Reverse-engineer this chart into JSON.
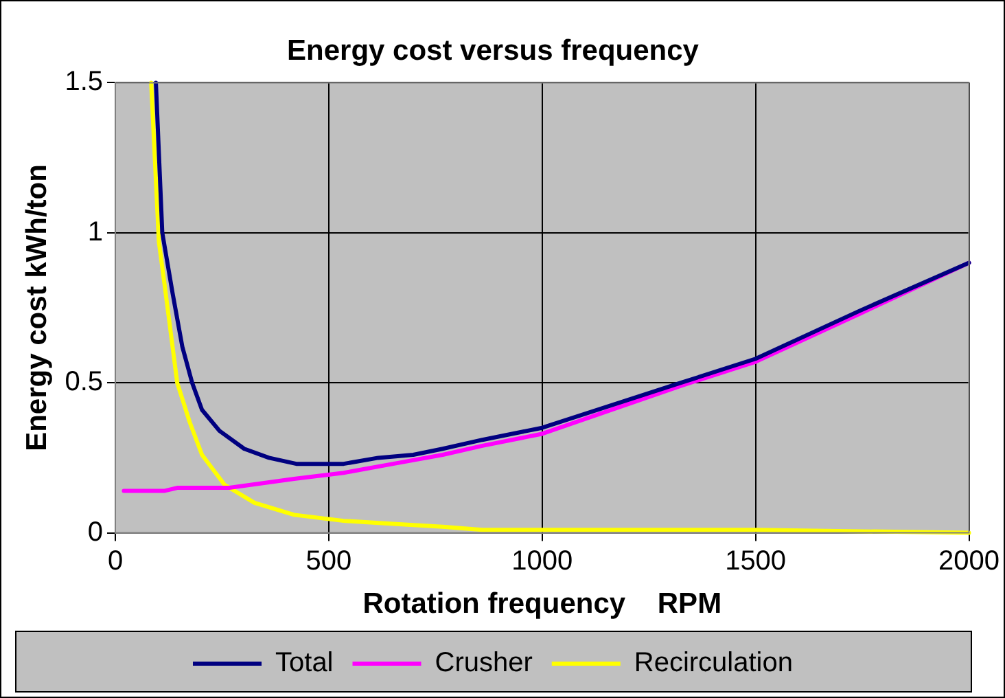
{
  "chart_data": {
    "type": "line",
    "title": "Energy cost versus frequency",
    "xlabel": "Rotation frequency    RPM",
    "ylabel": "Energy cost kWh/ton",
    "xlim": [
      0,
      2000
    ],
    "xticks": [
      0,
      500,
      1000,
      1500,
      2000
    ],
    "ylim": [
      0,
      1.5
    ],
    "yticks": [
      0,
      0.5,
      1,
      1.5
    ],
    "grid": true,
    "legend": "bottom",
    "marker": "none",
    "line_style": "solid",
    "series": [
      {
        "name": "Total",
        "color": "#000080",
        "x": [
          95,
          110,
          134,
          157,
          180,
          203,
          244,
          302,
          360,
          424,
          535,
          616,
          698,
          767,
          860,
          1000,
          1325,
          1500,
          1744,
          2000
        ],
        "values": [
          1.5,
          1.0,
          0.8,
          0.62,
          0.5,
          0.41,
          0.34,
          0.28,
          0.25,
          0.23,
          0.23,
          0.25,
          0.26,
          0.28,
          0.31,
          0.35,
          0.5,
          0.58,
          0.74,
          0.9
        ]
      },
      {
        "name": "Crusher",
        "color": "#ff00ff",
        "x": [
          20,
          116,
          145,
          267,
          419,
          535,
          651,
          767,
          860,
          1000,
          1325,
          1500,
          1744,
          2000
        ],
        "values": [
          0.14,
          0.14,
          0.15,
          0.15,
          0.18,
          0.2,
          0.23,
          0.26,
          0.29,
          0.33,
          0.49,
          0.57,
          0.73,
          0.9
        ]
      },
      {
        "name": "Recirculation",
        "color": "#ffff00",
        "x": [
          84,
          102,
          116,
          145,
          174,
          203,
          256,
          326,
          419,
          535,
          651,
          767,
          860,
          1000,
          1500,
          2000
        ],
        "values": [
          1.5,
          0.97,
          0.82,
          0.5,
          0.37,
          0.26,
          0.16,
          0.1,
          0.06,
          0.04,
          0.03,
          0.02,
          0.01,
          0.01,
          0.01,
          0.0
        ]
      }
    ]
  }
}
